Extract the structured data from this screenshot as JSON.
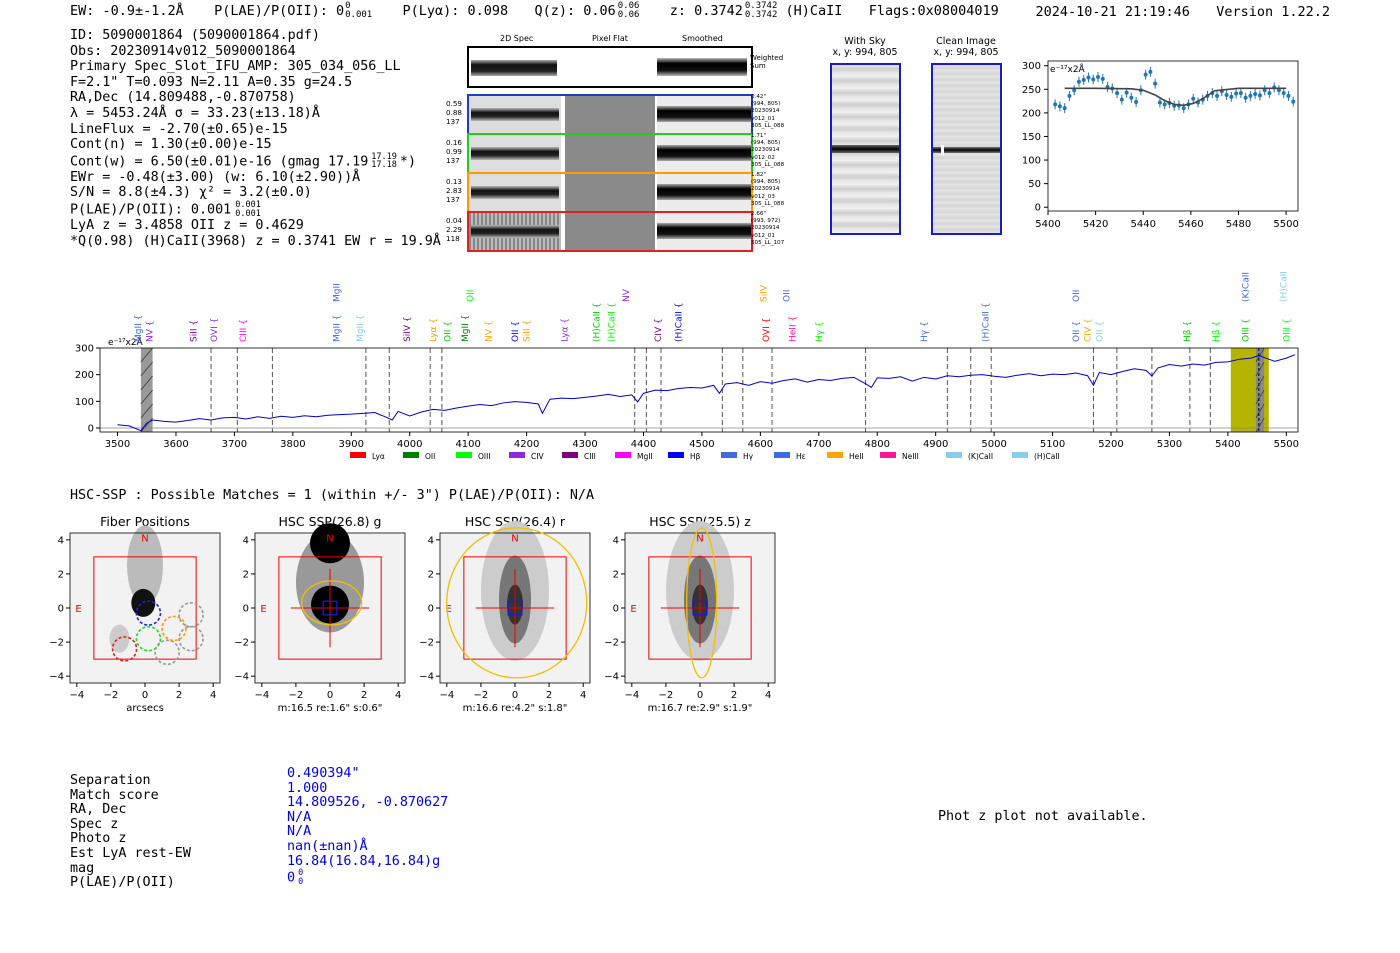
{
  "header": {
    "ew": "EW: -0.9±-1.2Å",
    "plae": "P(LAE)/P(OII): 0",
    "plae_sup": "0",
    "plae_sub": "0.001",
    "plya": "P(Lyα): 0.098",
    "qz": "Q(z): 0.06",
    "qz_sup": "0.06",
    "qz_sub": "0.06",
    "z": "z: 0.3742",
    "z_sup": "0.3742",
    "z_sub": "0.3742",
    "zline": "(H)CaII",
    "flags": "Flags:0x08004019",
    "timestamp": "2024-10-21 21:19:46",
    "version": "Version 1.22.2"
  },
  "info": {
    "id": "ID: 5090001864 (5090001864.pdf)",
    "obs": "Obs: 20230914v012_5090001864",
    "primary": "Primary Spec_Slot_IFU_AMP: 305_034_056_LL",
    "fta": "F=2.1\"  T=0.093  N=2.11  A=0.35  g=24.5",
    "radec": "RA,Dec (14.809488,-0.870758)",
    "lambda": "λ = 5453.24Å  σ = 33.23(±13.18)Å",
    "lineflux": "LineFlux = -2.70(±0.65)e-15",
    "contn": "Cont(n) = 1.30(±0.00)e-15",
    "contw": "Cont(w) = 6.50(±0.01)e-16 (gmag 17.19",
    "contw_sup": "17.19",
    "contw_sub": "17.18",
    "contw_end": "*)",
    "ewr": "EWr = -0.48(±3.00) (w: 6.10(±2.90))Å",
    "sn": "S/N = 8.8(±4.3)  χ² = 3.2(±0.0)",
    "plae": "P(LAE)/P(OII): 0.001",
    "plae_sup": "0.001",
    "plae_sub": "0.001",
    "lya": "LyA z = 3.4858  OII z = 0.4629",
    "q": "*Q(0.98) (H)CaII(3968) z = 0.3741  EW r = 19.9Å"
  },
  "stamps": {
    "col_headers": [
      "2D Spec",
      "Pixel Flat",
      "Smoothed"
    ],
    "weighted_label": "Weighted Sum",
    "rows": [
      {
        "left": [
          "0.59",
          "0.88",
          "137"
        ],
        "right": [
          "0.42\"",
          "(994, 805)",
          "20230914",
          "v012_01",
          "305_LL_088"
        ],
        "color": "#1f3fbf"
      },
      {
        "left": [
          "0.16",
          "0.99",
          "137"
        ],
        "right": [
          "1.71\"",
          "(994, 805)",
          "20230914",
          "v012_02",
          "305_LL_088"
        ],
        "color": "#22cc22"
      },
      {
        "left": [
          "0.13",
          "2.83",
          "137"
        ],
        "right": [
          "1.82\"",
          "(994, 805)",
          "20230914",
          "v012_03",
          "305_LL_088"
        ],
        "color": "#ff9900"
      },
      {
        "left": [
          "0.04",
          "2.29",
          "118"
        ],
        "right": [
          "2.66\"",
          "(993, 972)",
          "20230914",
          "v012_01",
          "305_LL_107"
        ],
        "color": "#e02020"
      }
    ]
  },
  "cutouts": [
    {
      "title": "With Sky",
      "sub": "x, y: 994, 805"
    },
    {
      "title": "Clean Image",
      "sub": "x, y: 994, 805"
    }
  ],
  "zoom_chart": {
    "type": "scatter",
    "unit_label": "e⁻¹⁷x2Å",
    "xlim": [
      5400,
      5505
    ],
    "ylim": [
      -8,
      310
    ],
    "xticks": [
      5400,
      5420,
      5440,
      5460,
      5480,
      5500
    ],
    "yticks": [
      0,
      50,
      100,
      150,
      200,
      250,
      300
    ],
    "points_x": [
      5403,
      5405,
      5407,
      5409,
      5411,
      5413,
      5415,
      5417,
      5419,
      5421,
      5423,
      5425,
      5427,
      5429,
      5431,
      5433,
      5435,
      5437,
      5439,
      5441,
      5443,
      5445,
      5447,
      5449,
      5451,
      5453,
      5455,
      5457,
      5459,
      5461,
      5463,
      5465,
      5467,
      5469,
      5471,
      5473,
      5475,
      5477,
      5479,
      5481,
      5483,
      5485,
      5487,
      5489,
      5491,
      5493,
      5495,
      5497,
      5499,
      5501,
      5503
    ],
    "points_y": [
      218,
      214,
      210,
      236,
      248,
      266,
      270,
      275,
      271,
      276,
      272,
      255,
      252,
      242,
      228,
      243,
      232,
      223,
      248,
      281,
      287,
      262,
      222,
      218,
      221,
      215,
      216,
      210,
      218,
      230,
      222,
      228,
      236,
      242,
      236,
      246,
      238,
      234,
      241,
      242,
      232,
      236,
      240,
      237,
      248,
      242,
      254,
      248,
      242,
      236,
      224
    ],
    "model_x": [
      5407,
      5420,
      5435,
      5440,
      5445,
      5449,
      5453,
      5457,
      5461,
      5465,
      5470,
      5480,
      5490,
      5500
    ],
    "model_y": [
      252,
      252,
      251,
      248,
      238,
      226,
      218,
      216,
      220,
      230,
      247,
      252,
      252,
      252
    ]
  },
  "spectrum_chart": {
    "type": "line",
    "unit_label": "e⁻¹⁷x2Å",
    "xlim": [
      3470,
      5520
    ],
    "ylim": [
      -15,
      300
    ],
    "xticks": [
      3500,
      3600,
      3700,
      3800,
      3900,
      4000,
      4100,
      4200,
      4300,
      4400,
      4500,
      4600,
      4700,
      4800,
      4900,
      5000,
      5100,
      5200,
      5300,
      5400,
      5500
    ],
    "yticks": [
      0,
      100,
      200,
      300
    ],
    "x": [
      3500,
      3520,
      3540,
      3550,
      3560,
      3580,
      3600,
      3620,
      3640,
      3660,
      3680,
      3700,
      3720,
      3740,
      3760,
      3780,
      3800,
      3820,
      3840,
      3860,
      3880,
      3900,
      3920,
      3940,
      3960,
      3970,
      3980,
      4000,
      4020,
      4040,
      4060,
      4080,
      4100,
      4120,
      4140,
      4160,
      4180,
      4200,
      4220,
      4227,
      4240,
      4260,
      4280,
      4300,
      4320,
      4340,
      4360,
      4380,
      4390,
      4400,
      4420,
      4440,
      4460,
      4480,
      4500,
      4520,
      4530,
      4540,
      4560,
      4580,
      4600,
      4620,
      4640,
      4660,
      4680,
      4700,
      4720,
      4740,
      4760,
      4780,
      4790,
      4800,
      4820,
      4840,
      4860,
      4880,
      4900,
      4920,
      4940,
      4960,
      4980,
      5000,
      5020,
      5040,
      5060,
      5080,
      5100,
      5120,
      5140,
      5160,
      5170,
      5180,
      5200,
      5220,
      5240,
      5260,
      5270,
      5280,
      5300,
      5320,
      5340,
      5360,
      5380,
      5400,
      5420,
      5440,
      5453,
      5460,
      5480,
      5500,
      5515
    ],
    "y": [
      12,
      8,
      -10,
      18,
      30,
      25,
      22,
      28,
      35,
      30,
      38,
      40,
      34,
      42,
      36,
      44,
      40,
      46,
      42,
      48,
      50,
      52,
      55,
      58,
      40,
      30,
      62,
      45,
      60,
      70,
      66,
      75,
      82,
      88,
      84,
      94,
      99,
      96,
      90,
      55,
      108,
      112,
      110,
      115,
      120,
      126,
      118,
      124,
      98,
      130,
      142,
      140,
      148,
      152,
      150,
      160,
      130,
      165,
      170,
      160,
      174,
      168,
      178,
      184,
      172,
      182,
      178,
      186,
      190,
      166,
      152,
      188,
      186,
      192,
      176,
      190,
      184,
      196,
      192,
      198,
      200,
      194,
      190,
      198,
      204,
      196,
      202,
      200,
      206,
      196,
      160,
      208,
      200,
      212,
      222,
      216,
      195,
      225,
      238,
      232,
      240,
      236,
      246,
      248,
      258,
      262,
      272,
      266,
      250,
      262,
      275
    ],
    "legend": [
      "Lyα",
      "OII",
      "OIII",
      "CIV",
      "CIII",
      "MgII",
      "Hβ",
      "Hγ",
      "Hε",
      "HeII",
      "NeIII",
      "(K)CaII",
      "(H)CaII"
    ],
    "legend_colors": [
      "#ff0000",
      "#008000",
      "#00ff00",
      "#8a2be2",
      "#800080",
      "#ff00ff",
      "#0000ff",
      "#4169e1",
      "#4169e1",
      "#ffa500",
      "#ff1493",
      "#87ceeb",
      "#87ceeb"
    ],
    "dashed_x": [
      3660,
      3705,
      3765,
      3925,
      3965,
      4035,
      4055,
      4385,
      4405,
      4430,
      4535,
      4570,
      4620,
      4780,
      4920,
      4960,
      4995,
      5170,
      5210,
      5270,
      5335,
      5370
    ],
    "emission_labels": [
      {
        "t": "MgII",
        "x": 3535,
        "c": "#4169e1",
        "row": 0
      },
      {
        "t": "NV",
        "x": 3555,
        "c": "#8a2be2",
        "row": 0
      },
      {
        "t": "SiII",
        "x": 3630,
        "c": "#800080",
        "row": 0
      },
      {
        "t": "OVI",
        "x": 3665,
        "c": "#8a2be2",
        "row": 0
      },
      {
        "t": "CIII",
        "x": 3715,
        "c": "#ff00ff",
        "row": 0
      },
      {
        "t": "MgII",
        "x": 3875,
        "c": "#4169e1",
        "row": 1
      },
      {
        "t": "MgII",
        "x": 3875,
        "c": "#4169e1",
        "row": 0
      },
      {
        "t": "MgII",
        "x": 3915,
        "c": "#87ceeb",
        "row": 0
      },
      {
        "t": "SiIV",
        "x": 3995,
        "c": "#800080",
        "row": 0
      },
      {
        "t": "Lyα",
        "x": 4040,
        "c": "#ff9900",
        "row": 0
      },
      {
        "t": "OII",
        "x": 4065,
        "c": "#00cc00",
        "row": 0
      },
      {
        "t": "MgII",
        "x": 4095,
        "c": "#008000",
        "row": 0
      },
      {
        "t": "OII",
        "x": 4103,
        "c": "#00ff00",
        "row": 1
      },
      {
        "t": "NV",
        "x": 4135,
        "c": "#ffa500",
        "row": 0
      },
      {
        "t": "OII",
        "x": 4180,
        "c": "#0000ff",
        "row": 0
      },
      {
        "t": "SiII",
        "x": 4200,
        "c": "#ff9900",
        "row": 0
      },
      {
        "t": "Lyα",
        "x": 4265,
        "c": "#8a2be2",
        "row": 0
      },
      {
        "t": "(H)CaII",
        "x": 4320,
        "c": "#00cc00",
        "row": 0
      },
      {
        "t": "(H)CaII",
        "x": 4345,
        "c": "#00ff00",
        "row": 0
      },
      {
        "t": "NV",
        "x": 4370,
        "c": "#8a2be2",
        "row": 1
      },
      {
        "t": "CIV",
        "x": 4425,
        "c": "#800080",
        "row": 0
      },
      {
        "t": "(H)CaII",
        "x": 4460,
        "c": "#0000ff",
        "row": 0
      },
      {
        "t": "SiIV",
        "x": 4605,
        "c": "#ffa500",
        "row": 1
      },
      {
        "t": "OII",
        "x": 4645,
        "c": "#4169e1",
        "row": 1
      },
      {
        "t": "OVI",
        "x": 4610,
        "c": "#ff0000",
        "row": 0
      },
      {
        "t": "HeII",
        "x": 4655,
        "c": "#ff1493",
        "row": 0
      },
      {
        "t": "Hγ",
        "x": 4700,
        "c": "#00ff00",
        "row": 0
      },
      {
        "t": "Hγ",
        "x": 4880,
        "c": "#4169e1",
        "row": 0
      },
      {
        "t": "(H)CaII",
        "x": 4985,
        "c": "#4169e1",
        "row": 0
      },
      {
        "t": "OII",
        "x": 5140,
        "c": "#4169e1",
        "row": 1
      },
      {
        "t": "OII",
        "x": 5140,
        "c": "#4169e1",
        "row": 0
      },
      {
        "t": "CIV",
        "x": 5160,
        "c": "#ffa500",
        "row": 0
      },
      {
        "t": "OII",
        "x": 5180,
        "c": "#87ceeb",
        "row": 0
      },
      {
        "t": "Hβ",
        "x": 5330,
        "c": "#00cc00",
        "row": 0
      },
      {
        "t": "Hβ",
        "x": 5380,
        "c": "#00ff00",
        "row": 0
      },
      {
        "t": "OIII",
        "x": 5430,
        "c": "#00cc00",
        "row": 0
      },
      {
        "t": "(K)CaII",
        "x": 5430,
        "c": "#4169e1",
        "row": 1
      },
      {
        "t": "(H)CaII",
        "x": 5495,
        "c": "#87ceeb",
        "row": 1
      },
      {
        "t": "OIII",
        "x": 5500,
        "c": "#00ff00",
        "row": 0
      }
    ]
  },
  "hsc": {
    "title": "HSC-SSP : Possible Matches = 1 (within +/- 3\")  P(LAE)/P(OII): N/A",
    "panels": [
      {
        "title": "Fiber Positions",
        "caption": "arcsecs"
      },
      {
        "title": "HSC SSP(26.8) g",
        "caption": "m:16.5   re:1.6\"  s:0.6\""
      },
      {
        "title": "HSC SSP(26.4) r",
        "caption": "m:16.6   re:4.2\"  s:1.8\""
      },
      {
        "title": "HSC SSP(25.5) z",
        "caption": "m:16.7   re:2.9\"  s:1.9\""
      }
    ],
    "ticks": [
      "−4",
      "−2",
      "0",
      "2",
      "4"
    ],
    "north": "N",
    "east": "E"
  },
  "match": {
    "labels": [
      "Separation",
      "Match score",
      "RA, Dec",
      "Spec z",
      "Photo z",
      "Est LyA rest-EW",
      "mag",
      "P(LAE)/P(OII)"
    ],
    "values": [
      "0.490394\"",
      "1.000",
      "14.809526, -0.870627",
      "N/A",
      "N/A",
      "nan(±nan)Å",
      "16.84(16.84,16.84)g",
      "0"
    ],
    "plae_sup": "0",
    "plae_sub": "0",
    "photz_note": "Phot z plot not available."
  }
}
